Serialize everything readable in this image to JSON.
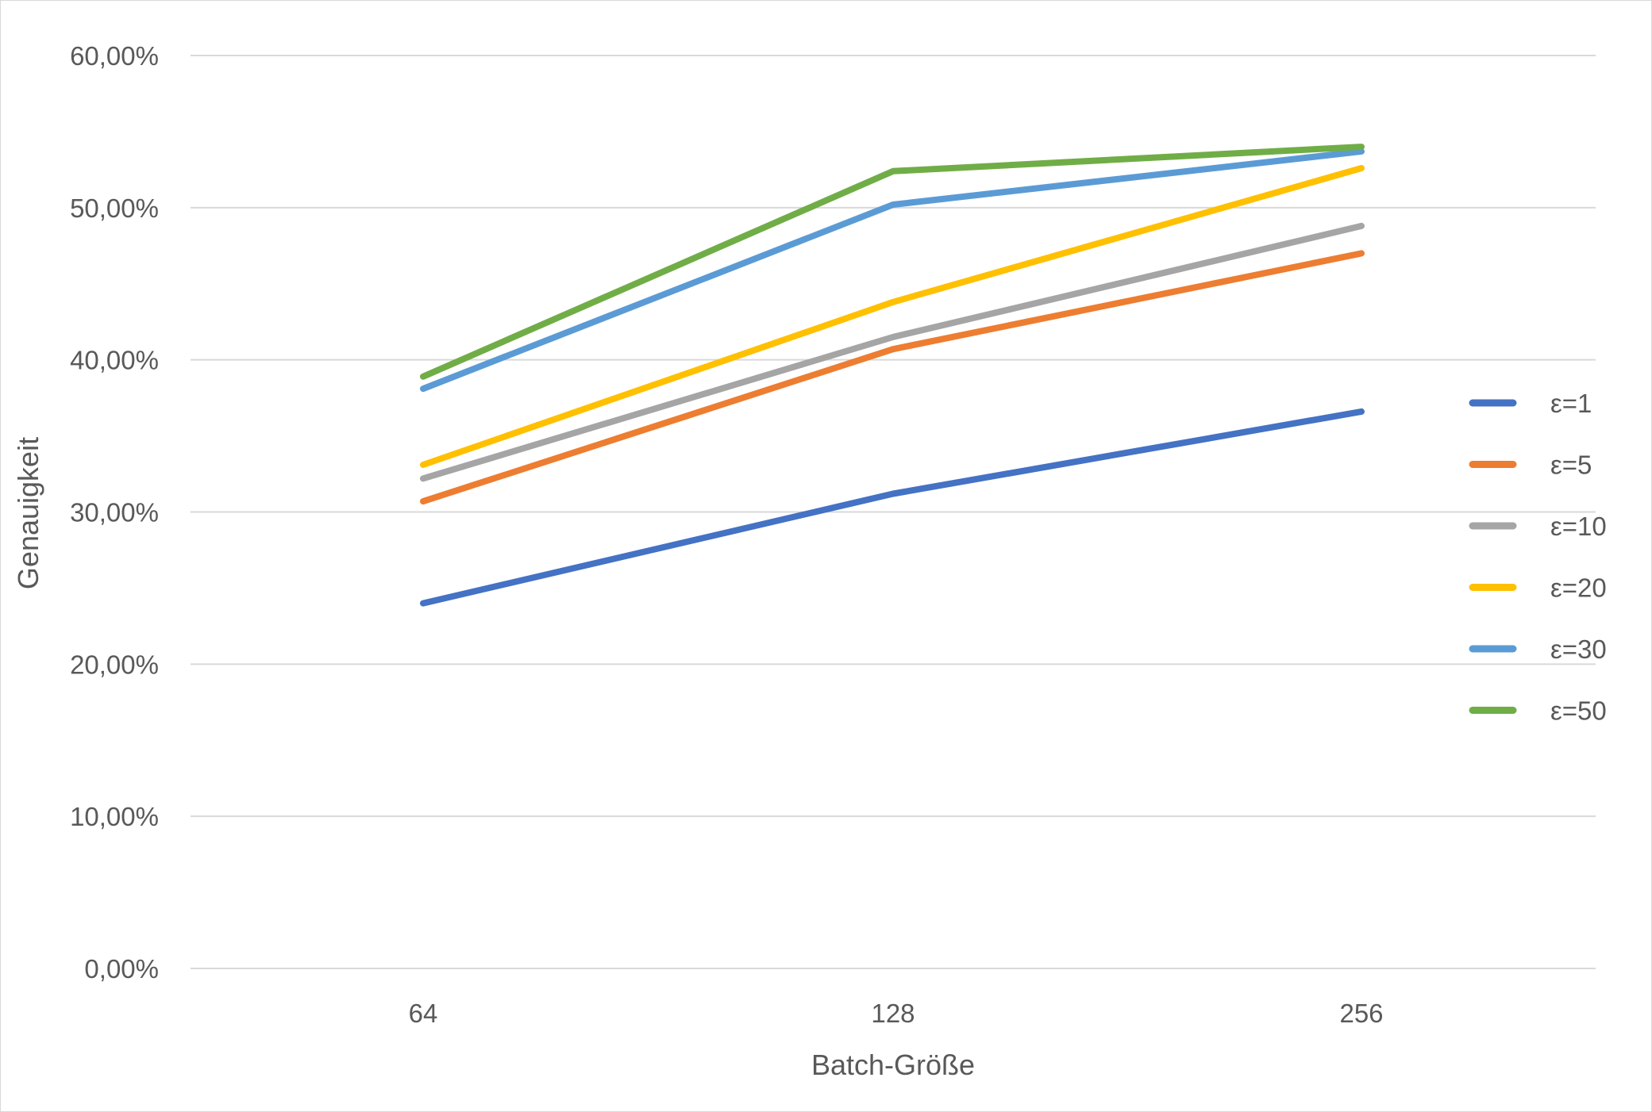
{
  "chart_data": {
    "type": "line",
    "title": "",
    "xlabel": "Batch-Größe",
    "ylabel": "Genauigkeit",
    "categories": [
      "64",
      "128",
      "256"
    ],
    "ylim": [
      0,
      0.6
    ],
    "y_ticks": [
      0,
      0.1,
      0.2,
      0.3,
      0.4,
      0.5,
      0.6
    ],
    "y_tick_labels": [
      "0,00%",
      "10,00%",
      "20,00%",
      "30,00%",
      "40,00%",
      "50,00%",
      "60,00%"
    ],
    "grid": true,
    "legend_position": "right",
    "series": [
      {
        "name": "ε=1",
        "color": "#4472C4",
        "values": [
          0.24,
          0.312,
          0.366
        ]
      },
      {
        "name": "ε=5",
        "color": "#ED7D31",
        "values": [
          0.307,
          0.407,
          0.47
        ]
      },
      {
        "name": "ε=10",
        "color": "#A5A5A5",
        "values": [
          0.322,
          0.415,
          0.488
        ]
      },
      {
        "name": "ε=20",
        "color": "#FFC000",
        "values": [
          0.331,
          0.438,
          0.526
        ]
      },
      {
        "name": "ε=30",
        "color": "#5B9BD5",
        "values": [
          0.381,
          0.502,
          0.537
        ]
      },
      {
        "name": "ε=50",
        "color": "#70AD47",
        "values": [
          0.389,
          0.524,
          0.54
        ]
      }
    ]
  }
}
